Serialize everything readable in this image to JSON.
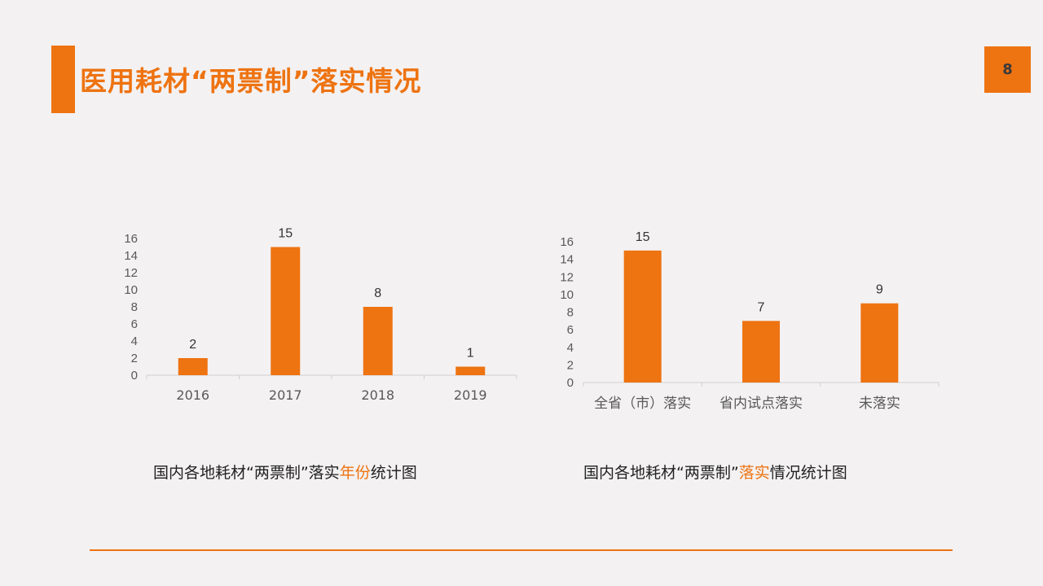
{
  "title": "医用耗材“两票制”落实情况",
  "page_number": "8",
  "colors": {
    "accent": "#ee7311",
    "bar": "#ee7311",
    "axis": "#d0d0d0",
    "text": "#595959"
  },
  "chart_data": [
    {
      "type": "bar",
      "categories": [
        "2016",
        "2017",
        "2018",
        "2019"
      ],
      "values": [
        2,
        15,
        8,
        1
      ],
      "data_labels": [
        "2",
        "15",
        "8",
        "1"
      ],
      "yticks": [
        "0",
        "2",
        "4",
        "6",
        "8",
        "10",
        "12",
        "14",
        "16"
      ],
      "ylim": [
        0,
        16
      ],
      "grid": false,
      "caption": {
        "before": "国内各地耗材“两票制”落实",
        "highlight": "年份",
        "after": "统计图"
      }
    },
    {
      "type": "bar",
      "categories": [
        "全省（市）落实",
        "省内试点落实",
        "未落实"
      ],
      "values": [
        15,
        7,
        9
      ],
      "data_labels": [
        "15",
        "7",
        "9"
      ],
      "yticks": [
        "0",
        "2",
        "4",
        "6",
        "8",
        "10",
        "12",
        "14",
        "16"
      ],
      "ylim": [
        0,
        16
      ],
      "grid": false,
      "caption": {
        "before": "国内各地耗材“两票制”",
        "highlight": "落实",
        "after": "情况统计图"
      }
    }
  ]
}
